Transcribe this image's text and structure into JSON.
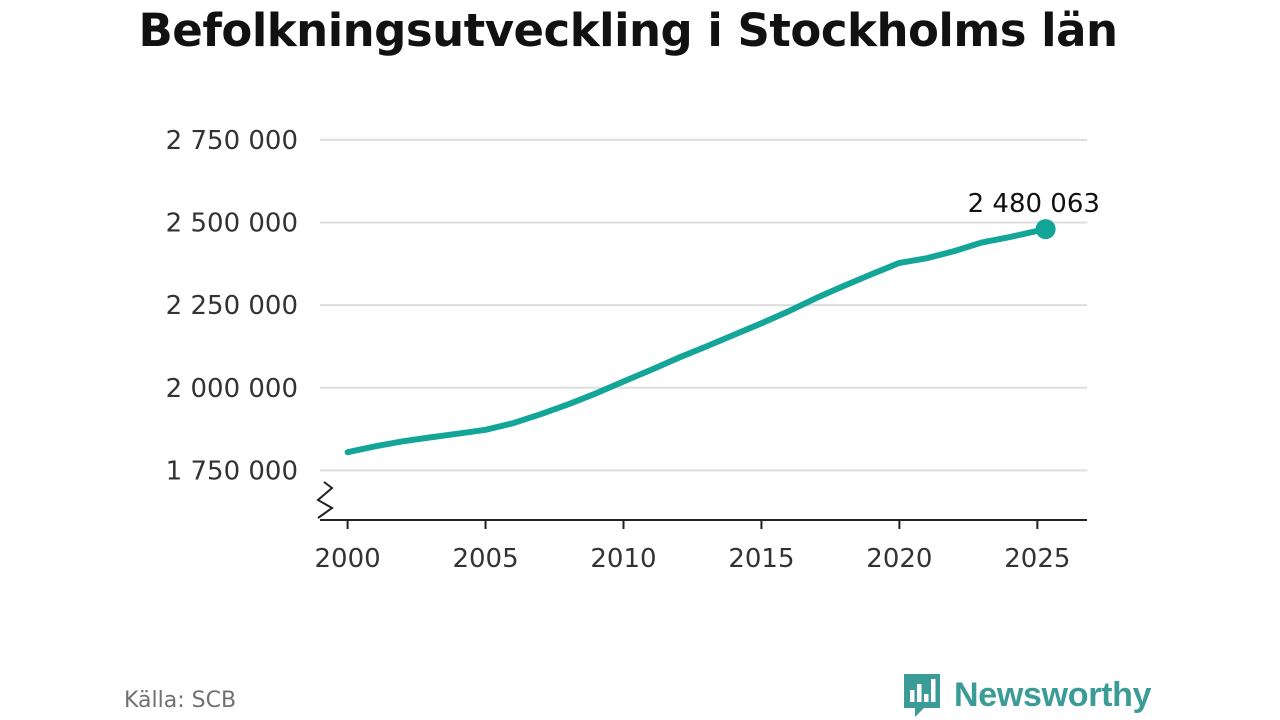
{
  "title": "Befolkningsutveckling i Stockholms län",
  "source": "Källa: SCB",
  "brand": {
    "name": "Newsworthy",
    "icon": "newsworthy-logo-icon",
    "color": "#3b9b96"
  },
  "colors": {
    "line": "#13a597",
    "grid": "#dddddd",
    "axis": "#222222",
    "text": "#333333"
  },
  "chart_data": {
    "type": "line",
    "title": "Befolkningsutveckling i Stockholms län",
    "xlabel": "",
    "ylabel": "",
    "xlim": [
      1999,
      2026.8
    ],
    "ylim": [
      1600000,
      2780000
    ],
    "axis_break": true,
    "grid": true,
    "y_ticks": [
      1750000,
      2000000,
      2250000,
      2500000,
      2750000
    ],
    "y_tick_labels": [
      "1 750 000",
      "2 000 000",
      "2 250 000",
      "2 500 000",
      "2 750 000"
    ],
    "x_ticks": [
      2000,
      2005,
      2010,
      2015,
      2020,
      2025
    ],
    "x_tick_labels": [
      "2000",
      "2005",
      "2010",
      "2015",
      "2020",
      "2025"
    ],
    "series": [
      {
        "x": [
          2000,
          2001,
          2002,
          2003,
          2004,
          2005,
          2006,
          2007,
          2008,
          2009,
          2010,
          2011,
          2012,
          2013,
          2014,
          2015,
          2016,
          2017,
          2018,
          2019,
          2020,
          2021,
          2022,
          2023,
          2024,
          2025.3
        ],
        "values": [
          1805000,
          1823000,
          1838000,
          1850000,
          1861000,
          1873000,
          1893000,
          1920000,
          1950000,
          1983000,
          2019000,
          2054000,
          2091000,
          2125000,
          2160000,
          2195000,
          2232000,
          2272000,
          2309000,
          2344000,
          2378000,
          2392000,
          2414000,
          2440000,
          2456000,
          2480063
        ]
      }
    ],
    "annotation": {
      "x": 2025.3,
      "y": 2480063,
      "label": "2 480 063"
    }
  }
}
